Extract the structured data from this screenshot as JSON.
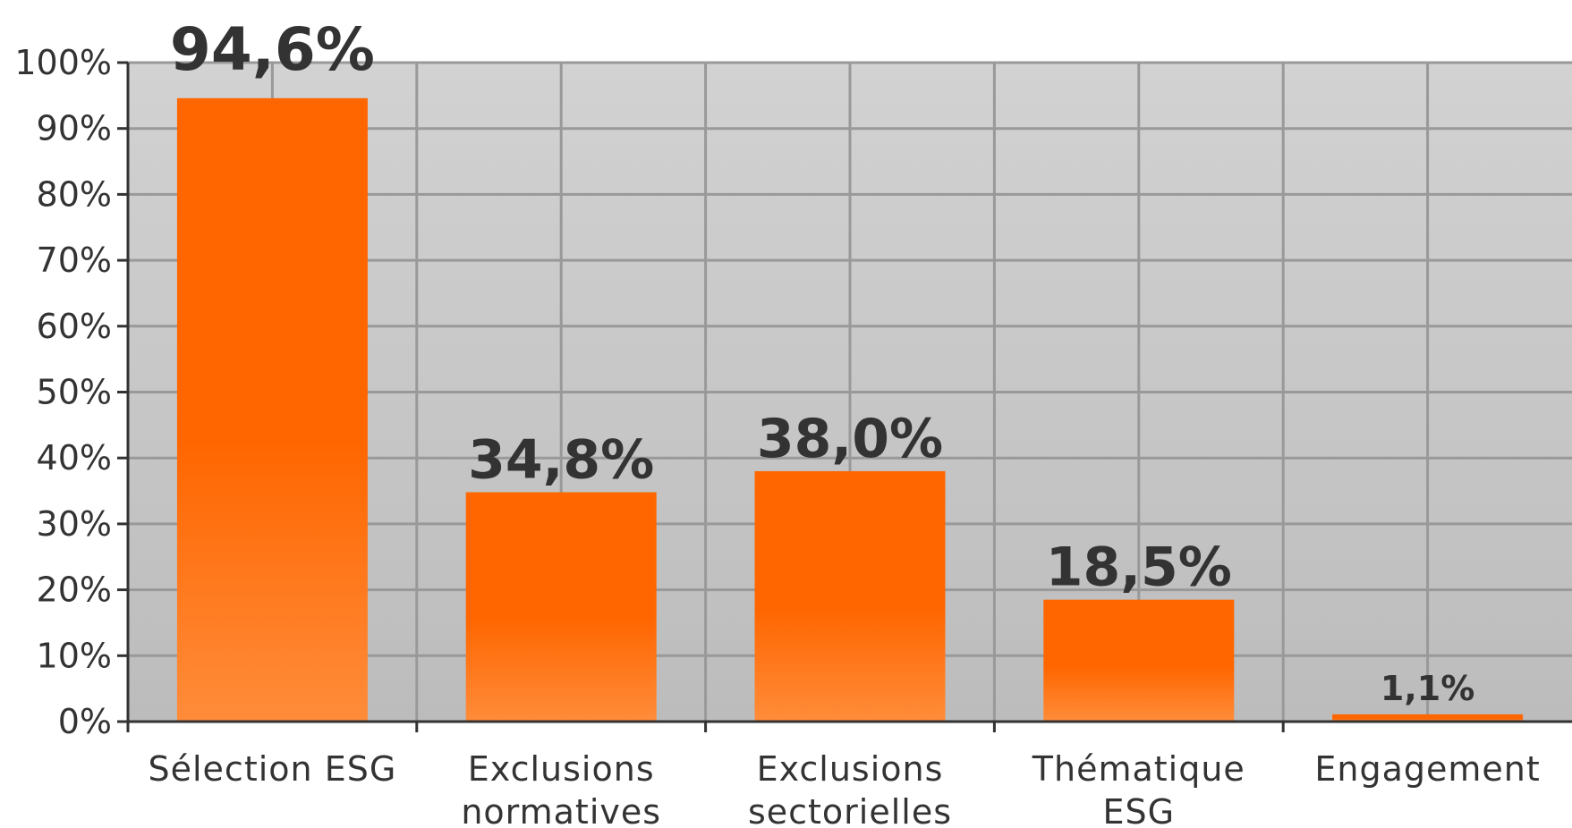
{
  "chart_data": {
    "type": "bar",
    "categories": [
      [
        "Sélection ESG"
      ],
      [
        "Exclusions",
        "normatives"
      ],
      [
        "Exclusions",
        "sectorielles"
      ],
      [
        "Thématique",
        "ESG"
      ],
      [
        "Engagement"
      ]
    ],
    "values": [
      94.6,
      34.8,
      38.0,
      18.5,
      1.1
    ],
    "data_labels": [
      "94,6%",
      "34,8%",
      "38,0%",
      "18,5%",
      "1,1%"
    ],
    "yticks": [
      "0%",
      "10%",
      "20%",
      "30%",
      "40%",
      "50%",
      "60%",
      "70%",
      "80%",
      "90%",
      "100%"
    ],
    "ylim": [
      0,
      100
    ],
    "grid": true,
    "colors": {
      "bar": "#ff6600",
      "bar_light": "#ff8c3a",
      "plot_bg_top": "#d2d2d2",
      "plot_bg_bottom": "#bcbcbc",
      "grid": "#999999",
      "axis": "#333333",
      "text": "#333333"
    }
  }
}
